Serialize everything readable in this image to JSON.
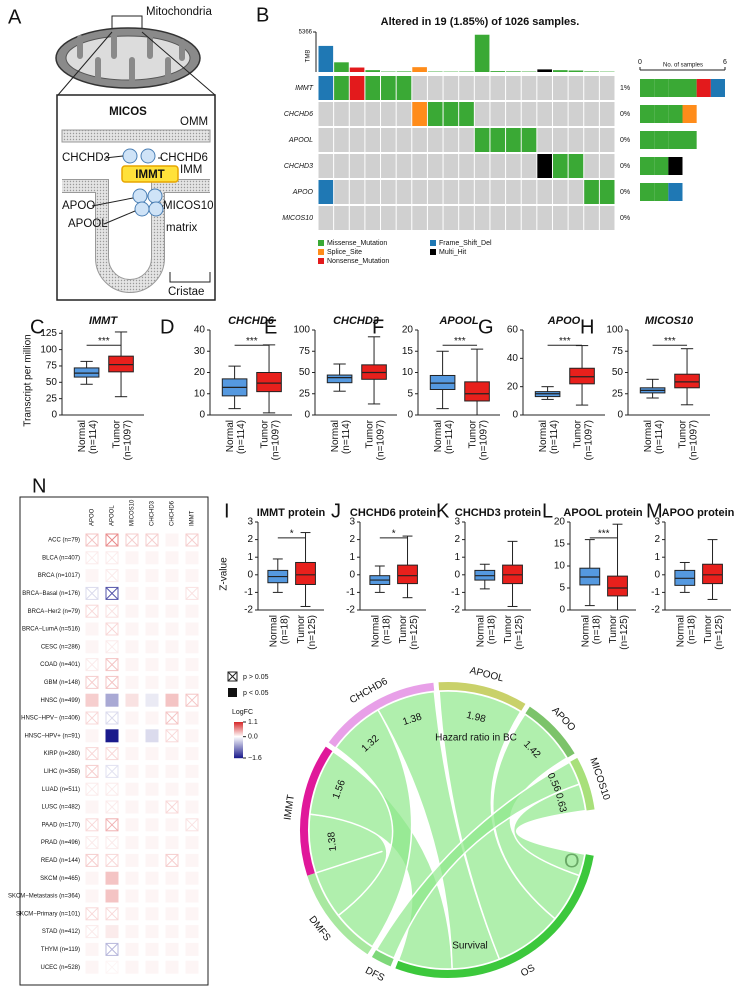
{
  "panel_labels": [
    "A",
    "B",
    "C",
    "D",
    "E",
    "F",
    "G",
    "H",
    "I",
    "J",
    "K",
    "L",
    "M",
    "N",
    "O"
  ],
  "diagram": {
    "title": "Mitochondria",
    "inset_title": "MICOS",
    "labels": [
      "OMM",
      "IMM",
      "CHCHD3",
      "CHCHD6",
      "IMMT",
      "APOO",
      "APOOL",
      "MICOS10",
      "matrix",
      "Cristae"
    ]
  },
  "chart_data": [
    {
      "type": "box",
      "title": "IMMT",
      "title_italic": true,
      "y_label": "Transcript per million",
      "ylim": [
        0,
        130
      ],
      "yticks": [
        0,
        25,
        50,
        75,
        100,
        125
      ],
      "categories": [
        "Normal",
        "Tumor"
      ],
      "n_labels": [
        "(n=114)",
        "(n=1097)"
      ],
      "colors": [
        "#5599e0",
        "#e8201c"
      ],
      "boxes": [
        [
          47,
          58,
          64,
          72,
          82
        ],
        [
          28,
          66,
          77,
          90,
          127
        ]
      ],
      "significance": "***"
    },
    {
      "type": "box",
      "title": "CHCHD6",
      "title_italic": true,
      "ylim": [
        0,
        40
      ],
      "yticks": [
        0,
        10,
        20,
        30,
        40
      ],
      "categories": [
        "Normal",
        "Tumor"
      ],
      "n_labels": [
        "(n=114)",
        "(n=1097)"
      ],
      "colors": [
        "#5599e0",
        "#e8201c"
      ],
      "boxes": [
        [
          3,
          9,
          13,
          17,
          23
        ],
        [
          1,
          11,
          15,
          20,
          33
        ]
      ],
      "significance": "***"
    },
    {
      "type": "box",
      "title": "CHCHD3",
      "title_italic": true,
      "ylim": [
        0,
        100
      ],
      "yticks": [
        0,
        25,
        50,
        75,
        100
      ],
      "categories": [
        "Normal",
        "Tumor"
      ],
      "n_labels": [
        "(n=114)",
        "(n=1097)"
      ],
      "colors": [
        "#5599e0",
        "#e8201c"
      ],
      "boxes": [
        [
          28,
          38,
          44,
          47,
          60
        ],
        [
          13,
          42,
          50,
          59,
          92
        ]
      ]
    },
    {
      "type": "box",
      "title": "APOOL",
      "title_italic": true,
      "ylim": [
        0,
        20
      ],
      "yticks": [
        0,
        5,
        10,
        15,
        20
      ],
      "categories": [
        "Normal",
        "Tumor"
      ],
      "n_labels": [
        "(n=114)",
        "(n=1097)"
      ],
      "colors": [
        "#5599e0",
        "#e8201c"
      ],
      "boxes": [
        [
          1.5,
          6,
          7.5,
          9.3,
          15
        ],
        [
          0,
          3.3,
          5,
          7.8,
          15.5
        ]
      ],
      "significance": "***"
    },
    {
      "type": "box",
      "title": "APOO",
      "title_italic": true,
      "ylim": [
        0,
        60
      ],
      "yticks": [
        0,
        20,
        40,
        60
      ],
      "categories": [
        "Normal",
        "Tumor"
      ],
      "n_labels": [
        "(n=114)",
        "(n=1097)"
      ],
      "colors": [
        "#5599e0",
        "#e8201c"
      ],
      "boxes": [
        [
          11,
          13,
          15,
          16.5,
          20
        ],
        [
          7,
          22,
          27,
          33,
          49
        ]
      ],
      "significance": "***"
    },
    {
      "type": "box",
      "title": "MICOS10",
      "title_italic": true,
      "ylim": [
        0,
        100
      ],
      "yticks": [
        0,
        25,
        50,
        75,
        100
      ],
      "categories": [
        "Normal",
        "Tumor"
      ],
      "n_labels": [
        "(n=114)",
        "(n=1097)"
      ],
      "colors": [
        "#5599e0",
        "#e8201c"
      ],
      "boxes": [
        [
          20,
          26,
          29,
          32,
          42
        ],
        [
          12,
          32,
          39,
          48,
          78
        ]
      ],
      "significance": "***"
    },
    {
      "type": "box",
      "title": "IMMT protein",
      "y_label": "Z-value",
      "ylim": [
        -2,
        3
      ],
      "yticks": [
        -2,
        -1,
        0,
        1,
        2,
        3
      ],
      "categories": [
        "Normal",
        "Tumor"
      ],
      "n_labels": [
        "(n=18)",
        "(n=125)"
      ],
      "colors": [
        "#5599e0",
        "#e8201c"
      ],
      "boxes": [
        [
          -1,
          -0.45,
          -0.1,
          0.25,
          0.9
        ],
        [
          -1.8,
          -0.55,
          0,
          0.7,
          2.4
        ]
      ],
      "significance": "*"
    },
    {
      "type": "box",
      "title": "CHCHD6 protein",
      "ylim": [
        -2,
        3
      ],
      "yticks": [
        -2,
        -1,
        0,
        1,
        2,
        3
      ],
      "categories": [
        "Normal",
        "Tumor"
      ],
      "n_labels": [
        "(n=18)",
        "(n=125)"
      ],
      "colors": [
        "#5599e0",
        "#e8201c"
      ],
      "boxes": [
        [
          -1,
          -0.55,
          -0.3,
          -0.05,
          0.5
        ],
        [
          -1.3,
          -0.5,
          -0.05,
          0.55,
          2.2
        ]
      ],
      "significance": "*"
    },
    {
      "type": "box",
      "title": "CHCHD3 protein",
      "ylim": [
        -2,
        3
      ],
      "yticks": [
        -2,
        -1,
        0,
        1,
        2,
        3
      ],
      "categories": [
        "Normal",
        "Tumor"
      ],
      "n_labels": [
        "(n=18)",
        "(n=125)"
      ],
      "colors": [
        "#5599e0",
        "#e8201c"
      ],
      "boxes": [
        [
          -0.8,
          -0.3,
          -0.05,
          0.25,
          0.6
        ],
        [
          -1.8,
          -0.5,
          0,
          0.55,
          1.9
        ]
      ]
    },
    {
      "type": "box",
      "title": "APOOL protein",
      "ylim": [
        0,
        20
      ],
      "yticks": [
        0,
        5,
        10,
        15,
        20
      ],
      "categories": [
        "Normal",
        "Tumor"
      ],
      "n_labels": [
        "(n=18)",
        "(n=125)"
      ],
      "colors": [
        "#5599e0",
        "#e8201c"
      ],
      "boxes": [
        [
          1,
          5.7,
          7.5,
          9.5,
          16
        ],
        [
          0,
          3.2,
          5,
          7.7,
          19.5
        ]
      ],
      "significance": "***"
    },
    {
      "type": "box",
      "title": "APOO protein",
      "ylim": [
        -2,
        3
      ],
      "yticks": [
        -2,
        -1,
        0,
        1,
        2,
        3
      ],
      "categories": [
        "Normal",
        "Tumor"
      ],
      "n_labels": [
        "(n=18)",
        "(n=125)"
      ],
      "colors": [
        "#5599e0",
        "#e8201c"
      ],
      "boxes": [
        [
          -1,
          -0.6,
          -0.2,
          0.25,
          0.7
        ],
        [
          -1.4,
          -0.5,
          0,
          0.6,
          2
        ]
      ]
    },
    {
      "type": "oncoprint",
      "title": "Altered in 19 (1.85%) of 1026 samples.",
      "tmb_label": "TMB",
      "tmb_lim": [
        0,
        5366
      ],
      "tmb_ticks": [
        5366
      ],
      "tmb": [
        3500,
        1300,
        600,
        250,
        60,
        80,
        650,
        60,
        50,
        60,
        5000,
        120,
        90,
        60,
        350,
        250,
        200,
        80,
        50
      ],
      "genes": [
        "IMMT",
        "CHCHD6",
        "APOOL",
        "CHCHD3",
        "APOO",
        "MICOS10"
      ],
      "percent_labels": [
        "1%",
        "0%",
        "0%",
        "0%",
        "0%",
        "0%"
      ],
      "alterations": [
        "Missense_Mutation",
        "Splice_Site",
        "Nonsense_Mutation",
        "Frame_Shift_Del",
        "Multi_Hit"
      ],
      "alteration_colors": [
        "#3aa935",
        "#ff8c1a",
        "#e31a1c",
        "#1f78b4",
        "#000000"
      ],
      "matrix": [
        [
          3,
          0,
          2,
          0,
          0,
          0,
          null,
          null,
          null,
          null,
          null,
          null,
          null,
          null,
          null,
          null,
          null,
          null,
          null
        ],
        [
          null,
          null,
          null,
          null,
          null,
          null,
          1,
          0,
          0,
          0,
          null,
          null,
          null,
          null,
          null,
          null,
          null,
          null,
          null
        ],
        [
          null,
          null,
          null,
          null,
          null,
          null,
          null,
          null,
          null,
          null,
          0,
          0,
          0,
          0,
          null,
          null,
          null,
          null,
          null
        ],
        [
          null,
          null,
          null,
          null,
          null,
          null,
          null,
          null,
          null,
          null,
          null,
          null,
          null,
          null,
          4,
          0,
          0,
          null,
          null
        ],
        [
          3,
          null,
          null,
          null,
          null,
          null,
          null,
          null,
          null,
          null,
          null,
          null,
          null,
          null,
          null,
          null,
          null,
          0,
          0
        ],
        [
          null,
          null,
          null,
          null,
          null,
          null,
          null,
          null,
          null,
          null,
          null,
          null,
          null,
          null,
          null,
          null,
          null,
          null,
          null
        ]
      ],
      "count_label": "No. of samples",
      "count_lim": [
        0,
        6
      ],
      "count_ticks": [
        0,
        6
      ]
    },
    {
      "type": "heatmap",
      "columns": [
        "APOO",
        "APOOL",
        "MICOS10",
        "CHCHD3",
        "CHCHD6",
        "IMMT"
      ],
      "rows": [
        "ACC (n=79)",
        "BLCA (n=407)",
        "BRCA (n=1017)",
        "BRCA−Basal (n=176)",
        "BRCA−Her2 (n=79)",
        "BRCA−LumA (n=516)",
        "CESC (n=286)",
        "COAD (n=401)",
        "GBM (n=148)",
        "HNSC (n=499)",
        "HNSC−HPV− (n=406)",
        "HNSC−HPV+ (n=91)",
        "KIRP (n=280)",
        "LIHC (n=358)",
        "LUAD (n=511)",
        "LUSC (n=482)",
        "PAAD (n=170)",
        "PRAD (n=496)",
        "READ (n=144)",
        "SKCM (n=465)",
        "SKCM−Metastasis (n=364)",
        "SKCM−Primary (n=101)",
        "STAD (n=412)",
        "THYM (n=119)",
        "UCEC (n=528)"
      ],
      "logfc": [
        [
          0.3,
          0.6,
          0.25,
          0.25,
          0.05,
          0.25
        ],
        [
          0.1,
          0.1,
          0.05,
          0.05,
          0.05,
          0.05
        ],
        [
          0.05,
          0.1,
          0.05,
          0.05,
          0.05,
          0.05
        ],
        [
          -0.25,
          -1.2,
          0.05,
          0.05,
          0.05,
          0.15
        ],
        [
          0.2,
          0.15,
          0.05,
          0.05,
          0.05,
          0.05
        ],
        [
          0.05,
          0.2,
          0.05,
          0.05,
          0.05,
          0.05
        ],
        [
          0.05,
          0.1,
          0.05,
          0.05,
          0.05,
          0.05
        ],
        [
          0.1,
          0.3,
          0.05,
          0.05,
          0.05,
          0.05
        ],
        [
          0.25,
          0.3,
          0.05,
          0.05,
          0.05,
          0.05
        ],
        [
          0.25,
          -0.6,
          0.15,
          -0.15,
          0.3,
          0.3
        ],
        [
          0.2,
          -0.25,
          0.05,
          0.05,
          0.3,
          0.05
        ],
        [
          0.05,
          -1.6,
          0.05,
          -0.25,
          0.2,
          0.05
        ],
        [
          0.2,
          0.2,
          0.05,
          0.05,
          0.05,
          0.05
        ],
        [
          0.25,
          -0.2,
          0.05,
          0.05,
          0.05,
          0.05
        ],
        [
          0.1,
          0.1,
          0.05,
          0.05,
          0.05,
          0.05
        ],
        [
          0.05,
          0.1,
          0.05,
          0.05,
          0.2,
          0.05
        ],
        [
          0.2,
          0.4,
          0.05,
          0.05,
          0.05,
          0.15
        ],
        [
          0.1,
          0.1,
          0.05,
          0.05,
          0.05,
          0.05
        ],
        [
          0.25,
          0.2,
          0.05,
          0.05,
          0.25,
          0.05
        ],
        [
          0.05,
          0.3,
          0.05,
          0.05,
          0.05,
          0.05
        ],
        [
          0.05,
          0.3,
          0.05,
          0.05,
          0.05,
          0.05
        ],
        [
          0.2,
          0.2,
          0.05,
          0.05,
          0.05,
          0.05
        ],
        [
          0.1,
          0.1,
          0.05,
          0.05,
          0.05,
          0.05
        ],
        [
          0.05,
          -0.5,
          0.05,
          0.05,
          0.05,
          0.05
        ],
        [
          0.05,
          0.05,
          0.05,
          0.05,
          0.05,
          0.05
        ]
      ],
      "crossed": [
        [
          1,
          1,
          1,
          1,
          0,
          1
        ],
        [
          1,
          1,
          0,
          0,
          0,
          0
        ],
        [
          0,
          1,
          0,
          0,
          0,
          0
        ],
        [
          1,
          1,
          0,
          0,
          0,
          1
        ],
        [
          1,
          1,
          0,
          0,
          0,
          0
        ],
        [
          0,
          1,
          0,
          0,
          0,
          0
        ],
        [
          0,
          1,
          0,
          0,
          0,
          0
        ],
        [
          1,
          1,
          0,
          0,
          0,
          0
        ],
        [
          1,
          1,
          0,
          0,
          0,
          0
        ],
        [
          0,
          0,
          0,
          0,
          0,
          1
        ],
        [
          1,
          1,
          0,
          0,
          1,
          0
        ],
        [
          0,
          0,
          0,
          0,
          1,
          0
        ],
        [
          1,
          1,
          0,
          0,
          0,
          0
        ],
        [
          1,
          1,
          0,
          0,
          0,
          0
        ],
        [
          1,
          1,
          0,
          0,
          0,
          0
        ],
        [
          0,
          1,
          0,
          0,
          1,
          0
        ],
        [
          1,
          1,
          0,
          0,
          0,
          1
        ],
        [
          1,
          1,
          0,
          0,
          0,
          0
        ],
        [
          1,
          1,
          0,
          0,
          1,
          0
        ],
        [
          0,
          0,
          0,
          0,
          0,
          0
        ],
        [
          0,
          0,
          0,
          0,
          0,
          0
        ],
        [
          1,
          1,
          0,
          0,
          0,
          0
        ],
        [
          1,
          0,
          0,
          0,
          0,
          0
        ],
        [
          0,
          1,
          0,
          0,
          0,
          0
        ],
        [
          0,
          1,
          0,
          0,
          0,
          0
        ]
      ],
      "p_labels": [
        "p > 0.05",
        "p < 0.05"
      ],
      "legend_title": "LogFC",
      "logfc_lim": [
        -1.6,
        1.1
      ],
      "logfc_ticks": [
        1.1,
        {
          "value": 0,
          "label": "0.0"
        },
        {
          "value": -1.6,
          "label": "−1.6"
        }
      ],
      "colors": {
        "high": "#d62728",
        "mid": "#ffffff",
        "low": "#1a1a8c"
      }
    },
    {
      "type": "chord",
      "title": "Hazard ratio in BC",
      "subtitle": "Survival",
      "genes": [
        "IMMT",
        "CHCHD6",
        "APOOL",
        "APOO",
        "MICOS10"
      ],
      "gene_colors": [
        "#e0189a",
        "#e8a0e8",
        "#c9d16a",
        "#7cc36a",
        "#a8e07a"
      ],
      "endpoints": [
        "DMFS",
        "DFS",
        "OS"
      ],
      "endpoint_colors": [
        "#a8e8a0",
        "#7ed87a",
        "#3cc83c"
      ],
      "ribbon_color": "#8ee88a",
      "links": [
        {
          "gene": 0,
          "endpoint": 0,
          "value": 1.38
        },
        {
          "gene": 0,
          "endpoint": 2,
          "value": 1.56
        },
        {
          "gene": 1,
          "endpoint": 0,
          "value": 1.32
        },
        {
          "gene": 1,
          "endpoint": 2,
          "value": 1.38
        },
        {
          "gene": 2,
          "endpoint": 2,
          "value": 1.98
        },
        {
          "gene": 3,
          "endpoint": 2,
          "value": 1.42
        },
        {
          "gene": 4,
          "endpoint": 1,
          "value": 0.56
        },
        {
          "gene": 4,
          "endpoint": 2,
          "value": 0.63
        }
      ]
    }
  ]
}
